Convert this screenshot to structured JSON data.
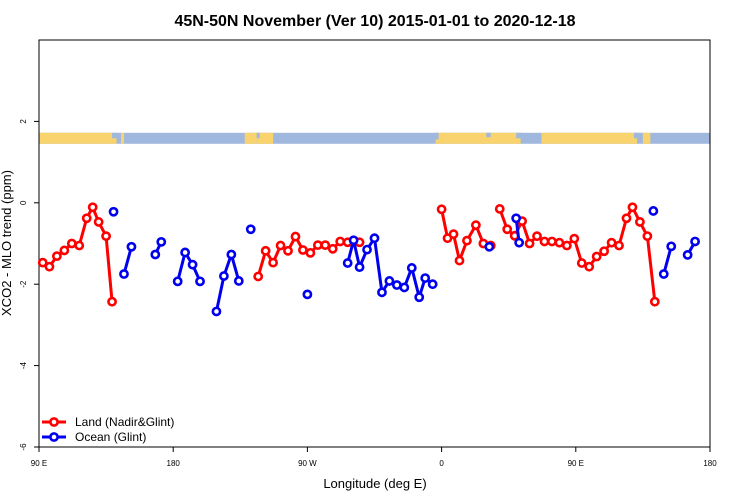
{
  "chart_data": {
    "type": "line",
    "title": "45N-50N November (Ver 10)   2015-01-01 to 2020-12-18",
    "xlabel": "Longitude (deg E)",
    "ylabel": "XCO2 - MLO trend (ppm)",
    "xlim": [
      90,
      540
    ],
    "ylim": [
      -6,
      4
    ],
    "x_ticks": [
      {
        "value": 90,
        "label": "90 E"
      },
      {
        "value": 180,
        "label": "180"
      },
      {
        "value": 270,
        "label": "90 W"
      },
      {
        "value": 360,
        "label": "0"
      },
      {
        "value": 450,
        "label": "90 E"
      },
      {
        "value": 540,
        "label": "180"
      }
    ],
    "y_ticks": [
      {
        "value": -6,
        "label": "-6"
      },
      {
        "value": -4,
        "label": "-4"
      },
      {
        "value": -2,
        "label": "-2"
      },
      {
        "value": 0,
        "label": "0"
      },
      {
        "value": 2,
        "label": "2"
      }
    ],
    "grid": false,
    "legend_position": "bottom-left",
    "map_strip": {
      "ymin": 1.45,
      "ymax": 1.72,
      "land_color": "#f9d46e",
      "ocean_color": "#a1b8de"
    },
    "series": [
      {
        "name": "Land (Nadir&Glint)",
        "color": "#ff0000",
        "segments": [
          [
            [
              92.5,
              -1.47
            ],
            [
              97,
              -1.57
            ],
            [
              102,
              -1.31
            ],
            [
              107,
              -1.17
            ],
            [
              112,
              -1.0
            ],
            [
              117,
              -1.05
            ],
            [
              122,
              -0.38
            ],
            [
              126,
              -0.11
            ],
            [
              130,
              -0.47
            ],
            [
              135,
              -0.82
            ],
            [
              139,
              -2.43
            ]
          ],
          [
            [
              237,
              -1.81
            ],
            [
              242,
              -1.18
            ],
            [
              247,
              -1.47
            ],
            [
              252,
              -1.05
            ],
            [
              257,
              -1.18
            ],
            [
              262,
              -0.83
            ],
            [
              267,
              -1.16
            ],
            [
              272,
              -1.23
            ],
            [
              277,
              -1.04
            ],
            [
              282,
              -1.04
            ],
            [
              287,
              -1.13
            ],
            [
              292,
              -0.95
            ],
            [
              297,
              -0.97
            ],
            [
              302,
              -0.95
            ],
            [
              305,
              -0.97
            ]
          ],
          [
            [
              360,
              -0.16
            ],
            [
              364,
              -0.87
            ],
            [
              368,
              -0.77
            ],
            [
              372,
              -1.42
            ],
            [
              377,
              -0.93
            ],
            [
              383,
              -0.55
            ],
            [
              388,
              -1.0
            ],
            [
              393,
              -1.05
            ]
          ],
          [
            [
              399,
              -0.15
            ],
            [
              404,
              -0.65
            ],
            [
              409,
              -0.81
            ],
            [
              414,
              -0.45
            ],
            [
              419,
              -1.0
            ],
            [
              424,
              -0.82
            ],
            [
              429,
              -0.95
            ],
            [
              434,
              -0.95
            ],
            [
              439,
              -0.98
            ],
            [
              444,
              -1.05
            ],
            [
              449,
              -0.88
            ],
            [
              454,
              -1.48
            ],
            [
              459,
              -1.57
            ],
            [
              464,
              -1.32
            ],
            [
              469,
              -1.19
            ],
            [
              474,
              -0.98
            ],
            [
              479,
              -1.05
            ],
            [
              484,
              -0.38
            ],
            [
              488,
              -0.11
            ],
            [
              493,
              -0.47
            ],
            [
              498,
              -0.82
            ],
            [
              503,
              -2.43
            ]
          ]
        ]
      },
      {
        "name": "Ocean (Glint)",
        "color": "#0000ee",
        "segments": [
          [
            [
              140,
              -0.22
            ]
          ],
          [
            [
              147,
              -1.75
            ],
            [
              152,
              -1.08
            ]
          ],
          [
            [
              168,
              -1.27
            ],
            [
              172,
              -0.96
            ]
          ],
          [
            [
              183,
              -1.93
            ],
            [
              188,
              -1.22
            ],
            [
              193,
              -1.52
            ],
            [
              198,
              -1.93
            ]
          ],
          [
            [
              209,
              -2.67
            ],
            [
              214,
              -1.8
            ],
            [
              219,
              -1.27
            ],
            [
              224,
              -1.92
            ]
          ],
          [
            [
              232,
              -0.65
            ]
          ],
          [
            [
              270,
              -2.25
            ]
          ],
          [
            [
              297,
              -1.48
            ],
            [
              301,
              -0.92
            ],
            [
              305,
              -1.58
            ],
            [
              310,
              -1.15
            ],
            [
              315,
              -0.87
            ],
            [
              320,
              -2.2
            ],
            [
              325,
              -1.92
            ],
            [
              330,
              -2.02
            ],
            [
              335,
              -2.08
            ],
            [
              340,
              -1.6
            ],
            [
              345,
              -2.32
            ],
            [
              349,
              -1.85
            ],
            [
              354,
              -2.0
            ]
          ],
          [
            [
              392,
              -1.08
            ]
          ],
          [
            [
              410,
              -0.38
            ],
            [
              412,
              -0.98
            ]
          ],
          [
            [
              502,
              -0.2
            ]
          ],
          [
            [
              509,
              -1.75
            ],
            [
              514,
              -1.07
            ]
          ],
          [
            [
              525,
              -1.28
            ],
            [
              530,
              -0.95
            ]
          ]
        ]
      }
    ]
  }
}
